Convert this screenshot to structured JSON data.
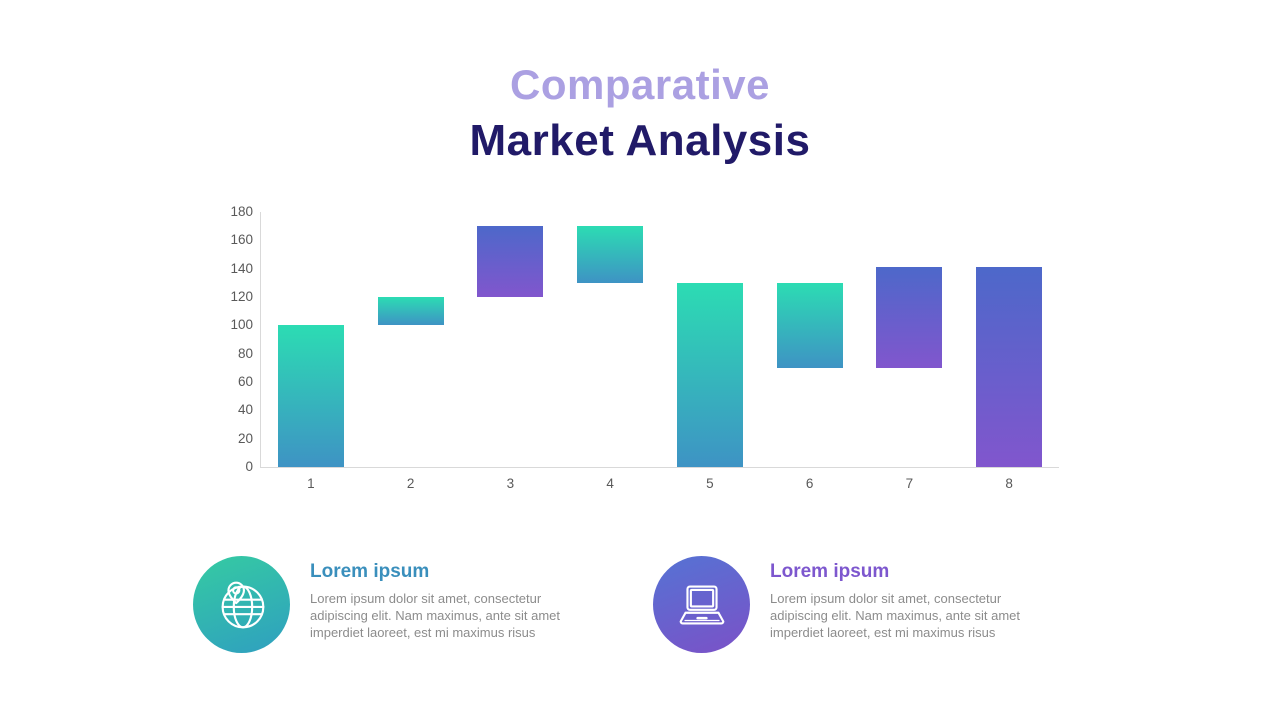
{
  "header": {
    "line1": "Comparative",
    "line2": "Market Analysis"
  },
  "chart_data": {
    "type": "bar",
    "subtype": "waterfall",
    "title": "",
    "xlabel": "",
    "ylabel": "",
    "categories": [
      "1",
      "2",
      "3",
      "4",
      "5",
      "6",
      "7",
      "8"
    ],
    "ylim": [
      0,
      180
    ],
    "ytick_step": 20,
    "grid": false,
    "legend": false,
    "bars": [
      {
        "category": "1",
        "start": 0,
        "end": 100,
        "palette": "teal"
      },
      {
        "category": "2",
        "start": 100,
        "end": 120,
        "palette": "teal"
      },
      {
        "category": "3",
        "start": 120,
        "end": 170,
        "palette": "purple"
      },
      {
        "category": "4",
        "start": 130,
        "end": 170,
        "palette": "teal"
      },
      {
        "category": "5",
        "start": 0,
        "end": 130,
        "palette": "teal"
      },
      {
        "category": "6",
        "start": 70,
        "end": 130,
        "palette": "teal"
      },
      {
        "category": "7",
        "start": 70,
        "end": 141,
        "palette": "purple"
      },
      {
        "category": "8",
        "start": 0,
        "end": 141,
        "palette": "purple"
      }
    ]
  },
  "features": [
    {
      "icon": "globe-pin-icon",
      "heading": "Lorem ipsum",
      "body": "Lorem ipsum dolor sit amet, consectetur adipiscing elit. Nam maximus, ante sit amet imperdiet laoreet, est mi maximus risus"
    },
    {
      "icon": "laptop-icon",
      "heading": "Lorem ipsum",
      "body": "Lorem ipsum dolor sit amet, consectetur adipiscing elit. Nam maximus, ante sit amet imperdiet laoreet, est mi maximus risus"
    }
  ],
  "colors": {
    "title_line1": "#ABA0E2",
    "title_line2": "#211A68",
    "teal_top": "#2CDCB3",
    "teal_bottom": "#3E93C4",
    "purple_top": "#4D68CA",
    "purple_bottom": "#8156CD",
    "axis_line": "#D9D9D9",
    "tick_text": "#595959",
    "feature1_heading": "#3A8FBC",
    "feature2_heading": "#7D57CE",
    "body_text": "#8C8C8C",
    "circle1_top": "#35CBA2",
    "circle1_bottom": "#2F9FC0",
    "circle2_top": "#5573D4",
    "circle2_bottom": "#7B51C7"
  }
}
